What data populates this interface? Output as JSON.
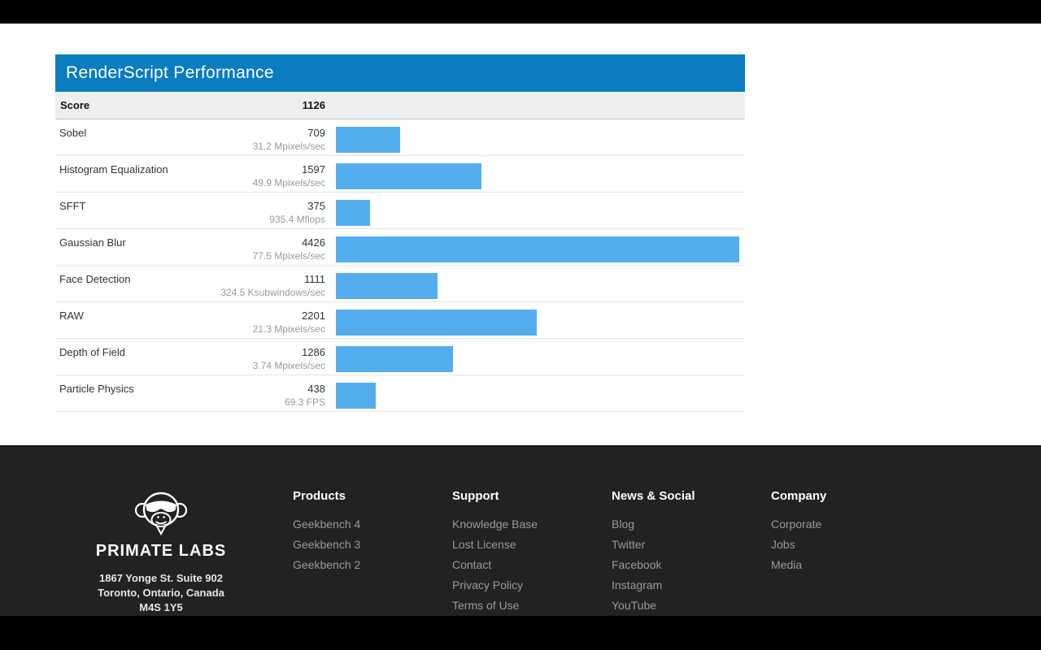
{
  "panel": {
    "title": "RenderScript Performance",
    "header_bg": "#0b7cc0",
    "bar_color": "#54aeee",
    "score_label": "Score",
    "score_value": "1126",
    "max_score": 4426,
    "rows": [
      {
        "name": "Sobel",
        "score": "709",
        "score_num": 709,
        "rate": "31.2 Mpixels/sec"
      },
      {
        "name": "Histogram Equalization",
        "score": "1597",
        "score_num": 1597,
        "rate": "49.9 Mpixels/sec"
      },
      {
        "name": "SFFT",
        "score": "375",
        "score_num": 375,
        "rate": "935.4 Mflops"
      },
      {
        "name": "Gaussian Blur",
        "score": "4426",
        "score_num": 4426,
        "rate": "77.5 Mpixels/sec"
      },
      {
        "name": "Face Detection",
        "score": "1111",
        "score_num": 1111,
        "rate": "324.5 Ksubwindows/sec"
      },
      {
        "name": "RAW",
        "score": "2201",
        "score_num": 2201,
        "rate": "21.3 Mpixels/sec"
      },
      {
        "name": "Depth of Field",
        "score": "1286",
        "score_num": 1286,
        "rate": "3.74 Mpixels/sec"
      },
      {
        "name": "Particle Physics",
        "score": "438",
        "score_num": 438,
        "rate": "69.3 FPS"
      }
    ]
  },
  "chart_data": {
    "type": "bar",
    "title": "RenderScript Performance",
    "categories": [
      "Sobel",
      "Histogram Equalization",
      "SFFT",
      "Gaussian Blur",
      "Face Detection",
      "RAW",
      "Depth of Field",
      "Particle Physics"
    ],
    "values": [
      709,
      1597,
      375,
      4426,
      1111,
      2201,
      1286,
      438
    ],
    "value_labels": [
      "31.2 Mpixels/sec",
      "49.9 Mpixels/sec",
      "935.4 Mflops",
      "77.5 Mpixels/sec",
      "324.5 Ksubwindows/sec",
      "21.3 Mpixels/sec",
      "3.74 Mpixels/sec",
      "69.3 FPS"
    ],
    "overall_score": 1126,
    "xlabel": "",
    "ylabel": "",
    "xlim": [
      0,
      4426
    ],
    "orientation": "horizontal",
    "grid": false,
    "bar_color": "#54aeee"
  },
  "footer": {
    "bg": "#222222",
    "brand": {
      "name": "PRIMATE LABS",
      "address_lines": [
        "1867 Yonge St. Suite 902",
        "Toronto, Ontario, Canada",
        "M4S 1Y5"
      ]
    },
    "columns": [
      {
        "heading": "Products",
        "links": [
          "Geekbench 4",
          "Geekbench 3",
          "Geekbench 2"
        ]
      },
      {
        "heading": "Support",
        "links": [
          "Knowledge Base",
          "Lost License",
          "Contact",
          "Privacy Policy",
          "Terms of Use"
        ]
      },
      {
        "heading": "News & Social",
        "links": [
          "Blog",
          "Twitter",
          "Facebook",
          "Instagram",
          "YouTube"
        ]
      },
      {
        "heading": "Company",
        "links": [
          "Corporate",
          "Jobs",
          "Media"
        ]
      }
    ]
  }
}
